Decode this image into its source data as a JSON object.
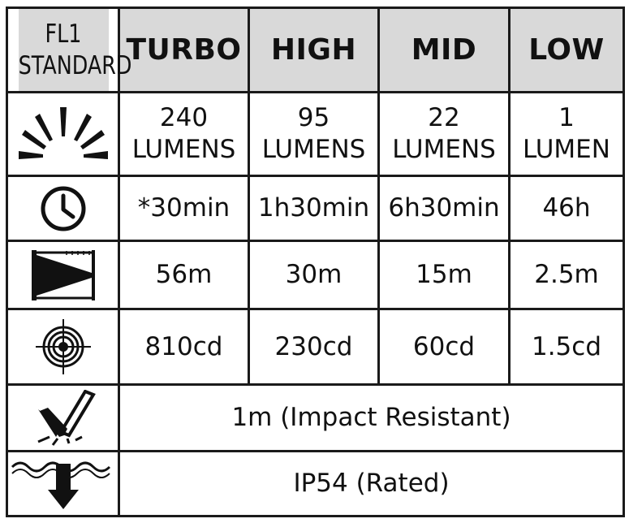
{
  "header": {
    "model_line1": "FL1",
    "model_line2": "STANDARD",
    "modes": [
      "TURBO",
      "HIGH",
      "MID",
      "LOW"
    ]
  },
  "rows": {
    "output": {
      "icon": "sun-rays-icon",
      "turbo": {
        "value": "240",
        "unit": "LUMENS"
      },
      "high": {
        "value": "95",
        "unit": "LUMENS"
      },
      "mid": {
        "value": "22",
        "unit": "LUMENS"
      },
      "low": {
        "value": "1",
        "unit": "LUMEN"
      }
    },
    "runtime": {
      "icon": "clock-icon",
      "values": [
        "*30min",
        "1h30min",
        "6h30min",
        "46h"
      ]
    },
    "beam_distance": {
      "icon": "beam-distance-icon",
      "values": [
        "56m",
        "30m",
        "15m",
        "2.5m"
      ]
    },
    "peak_intensity": {
      "icon": "target-icon",
      "values": [
        "810cd",
        "230cd",
        "60cd",
        "1.5cd"
      ]
    },
    "impact": {
      "icon": "impact-resistance-icon",
      "value": "1m (Impact Resistant)"
    },
    "water": {
      "icon": "water-resistance-icon",
      "value": "IP54 (Rated)"
    }
  },
  "colors": {
    "border": "#1a1a1a",
    "header_bg": "#d9d9d9",
    "text": "#111111"
  }
}
